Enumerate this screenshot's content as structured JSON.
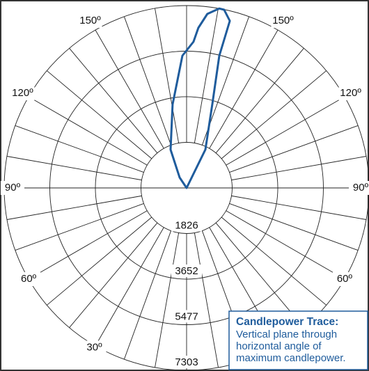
{
  "chart_data": {
    "type": "polar",
    "rlim": [
      0,
      7303
    ],
    "rticks": [
      1826,
      3652,
      5477,
      7303
    ],
    "angle_ticks": [
      {
        "value": 150,
        "label": "150º"
      },
      {
        "value": 120,
        "label": "120º"
      },
      {
        "value": 90,
        "label": "90º"
      },
      {
        "value": 60,
        "label": "60º"
      },
      {
        "value": 30,
        "label": "30º"
      }
    ],
    "series": [
      {
        "name": "Candlepower Trace:",
        "color": "#1f5c9c",
        "angles": [
          150,
          153.9,
          162.9,
          166.1,
          165.5,
          168.1,
          169.7,
          173.2,
          175.8,
          177.3,
          181.8,
          189.5,
          202.7,
          213.7
        ],
        "values": [
          0,
          1709,
          3501,
          5455,
          6910,
          7292,
          7303,
          7018,
          6428,
          5860,
          5299,
          3392,
          1661,
          502
        ]
      }
    ],
    "legend_lines": [
      "Vertical plane through",
      "horizontal angle of",
      "maximum candlepower."
    ]
  }
}
